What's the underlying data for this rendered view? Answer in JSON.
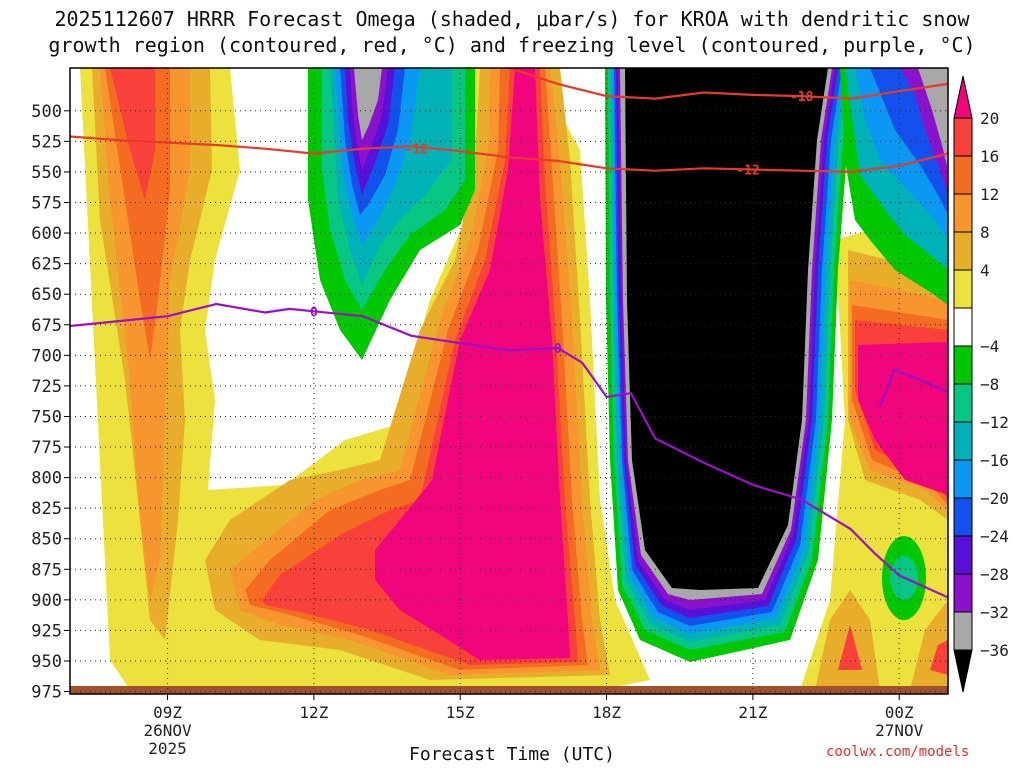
{
  "title": {
    "line1": "2025112607 HRRR Forecast Omega (shaded, μbar/s) for KROA with dendritic snow",
    "line2": "growth region (contoured, red, °C) and freezing level (contoured, purple, °C)"
  },
  "credit": "coolwx.com/models",
  "chart_data": {
    "type": "heatmap",
    "xlabel": "Forecast Time (UTC)",
    "ylabel": "",
    "x_range_hours": [
      7,
      25
    ],
    "ylim": [
      977,
      465
    ],
    "y_ticks": [
      500,
      525,
      550,
      575,
      600,
      625,
      650,
      675,
      700,
      725,
      750,
      775,
      800,
      825,
      850,
      875,
      900,
      925,
      950,
      975
    ],
    "x_ticks": [
      {
        "hour": 9,
        "lines": [
          "09Z",
          "26NOV",
          "2025"
        ]
      },
      {
        "hour": 12,
        "lines": [
          "12Z"
        ]
      },
      {
        "hour": 15,
        "lines": [
          "15Z"
        ]
      },
      {
        "hour": 18,
        "lines": [
          "18Z"
        ]
      },
      {
        "hour": 21,
        "lines": [
          "21Z"
        ]
      },
      {
        "hour": 24,
        "lines": [
          "00Z",
          "27NOV"
        ]
      }
    ],
    "grid": true,
    "colorbar": {
      "labels": [
        20,
        16,
        12,
        8,
        4,
        -4,
        -8,
        -12,
        -16,
        -20,
        -24,
        -28,
        -32,
        -36
      ],
      "colors": [
        "#f0057c",
        "#f8413b",
        "#f46c22",
        "#f7962e",
        "#e8ad2b",
        "#ede13d",
        "#ffffff",
        "#00c800",
        "#08c684",
        "#00b2b8",
        "#0b98f3",
        "#1450eb",
        "#5711d8",
        "#8b12cc",
        "#a8a8a8",
        "#000000"
      ]
    },
    "contours": [
      {
        "name": "dendritic snow growth region",
        "color": "red",
        "labels": [
          "-12",
          "-12",
          "-18",
          "-12"
        ]
      },
      {
        "name": "freezing level",
        "color": "purple",
        "labels": [
          "0",
          "0"
        ]
      }
    ],
    "contour_lines": {
      "dgz_minus12_upper": {
        "x": [
          7,
          8,
          9,
          10,
          11,
          12,
          13,
          14,
          15,
          16,
          17,
          18,
          19,
          20,
          21,
          22,
          23,
          24,
          25
        ],
        "y": [
          521,
          524,
          526,
          528,
          531,
          535,
          531,
          529,
          533,
          538,
          541,
          547,
          549,
          547,
          548,
          549,
          550,
          545,
          535
        ]
      },
      "dgz_minus18": {
        "x": [
          16,
          17,
          18,
          19,
          20,
          21,
          22,
          23,
          24,
          25
        ],
        "y": [
          465,
          478,
          488,
          490,
          485,
          487,
          488,
          490,
          484,
          478
        ]
      },
      "freezing_level_0": {
        "x": [
          7,
          8,
          9,
          9.5,
          10,
          11,
          11.5,
          12,
          13,
          14,
          15,
          16,
          17,
          17.5,
          18,
          18.5,
          19,
          20,
          21,
          22,
          23,
          23.5,
          24,
          25
        ],
        "y": [
          676,
          672,
          668,
          663,
          658,
          665,
          662,
          664,
          668,
          684,
          690,
          696,
          694,
          706,
          734,
          731,
          768,
          788,
          806,
          818,
          842,
          862,
          880,
          898
        ]
      },
      "freezing_level_0_east": {
        "x": [
          23.6,
          23.9,
          24.3,
          25
        ],
        "y": [
          742,
          712,
          718,
          730
        ]
      }
    }
  }
}
